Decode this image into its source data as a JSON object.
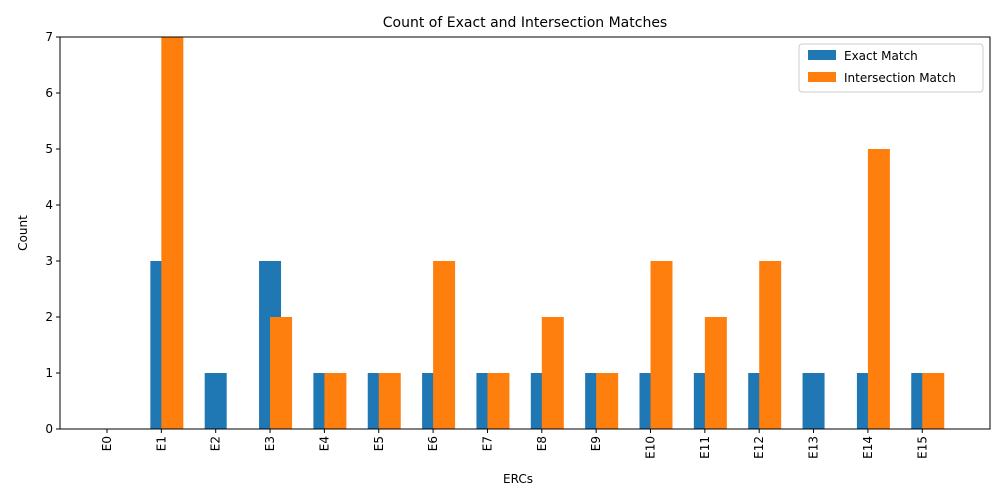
{
  "chart_data": {
    "type": "bar",
    "title": "Count of Exact and Intersection Matches",
    "xlabel": "ERCs",
    "ylabel": "Count",
    "categories": [
      "E0",
      "E1",
      "E2",
      "E3",
      "E4",
      "E5",
      "E6",
      "E7",
      "E8",
      "E9",
      "E10",
      "E11",
      "E12",
      "E13",
      "E14",
      "E15"
    ],
    "series": [
      {
        "name": "Exact Match",
        "color": "#1f77b4",
        "values": [
          0,
          3,
          1,
          3,
          1,
          1,
          1,
          1,
          1,
          1,
          1,
          1,
          1,
          1,
          1,
          1
        ]
      },
      {
        "name": "Intersection Match",
        "color": "#ff7f0e",
        "values": [
          0,
          7,
          0,
          2,
          1,
          1,
          3,
          1,
          2,
          1,
          3,
          2,
          3,
          0,
          5,
          1
        ]
      }
    ],
    "ylim": [
      0,
      7
    ],
    "yticks": [
      0,
      1,
      2,
      3,
      4,
      5,
      6,
      7
    ],
    "grid": false,
    "legend_position": "top-right"
  }
}
